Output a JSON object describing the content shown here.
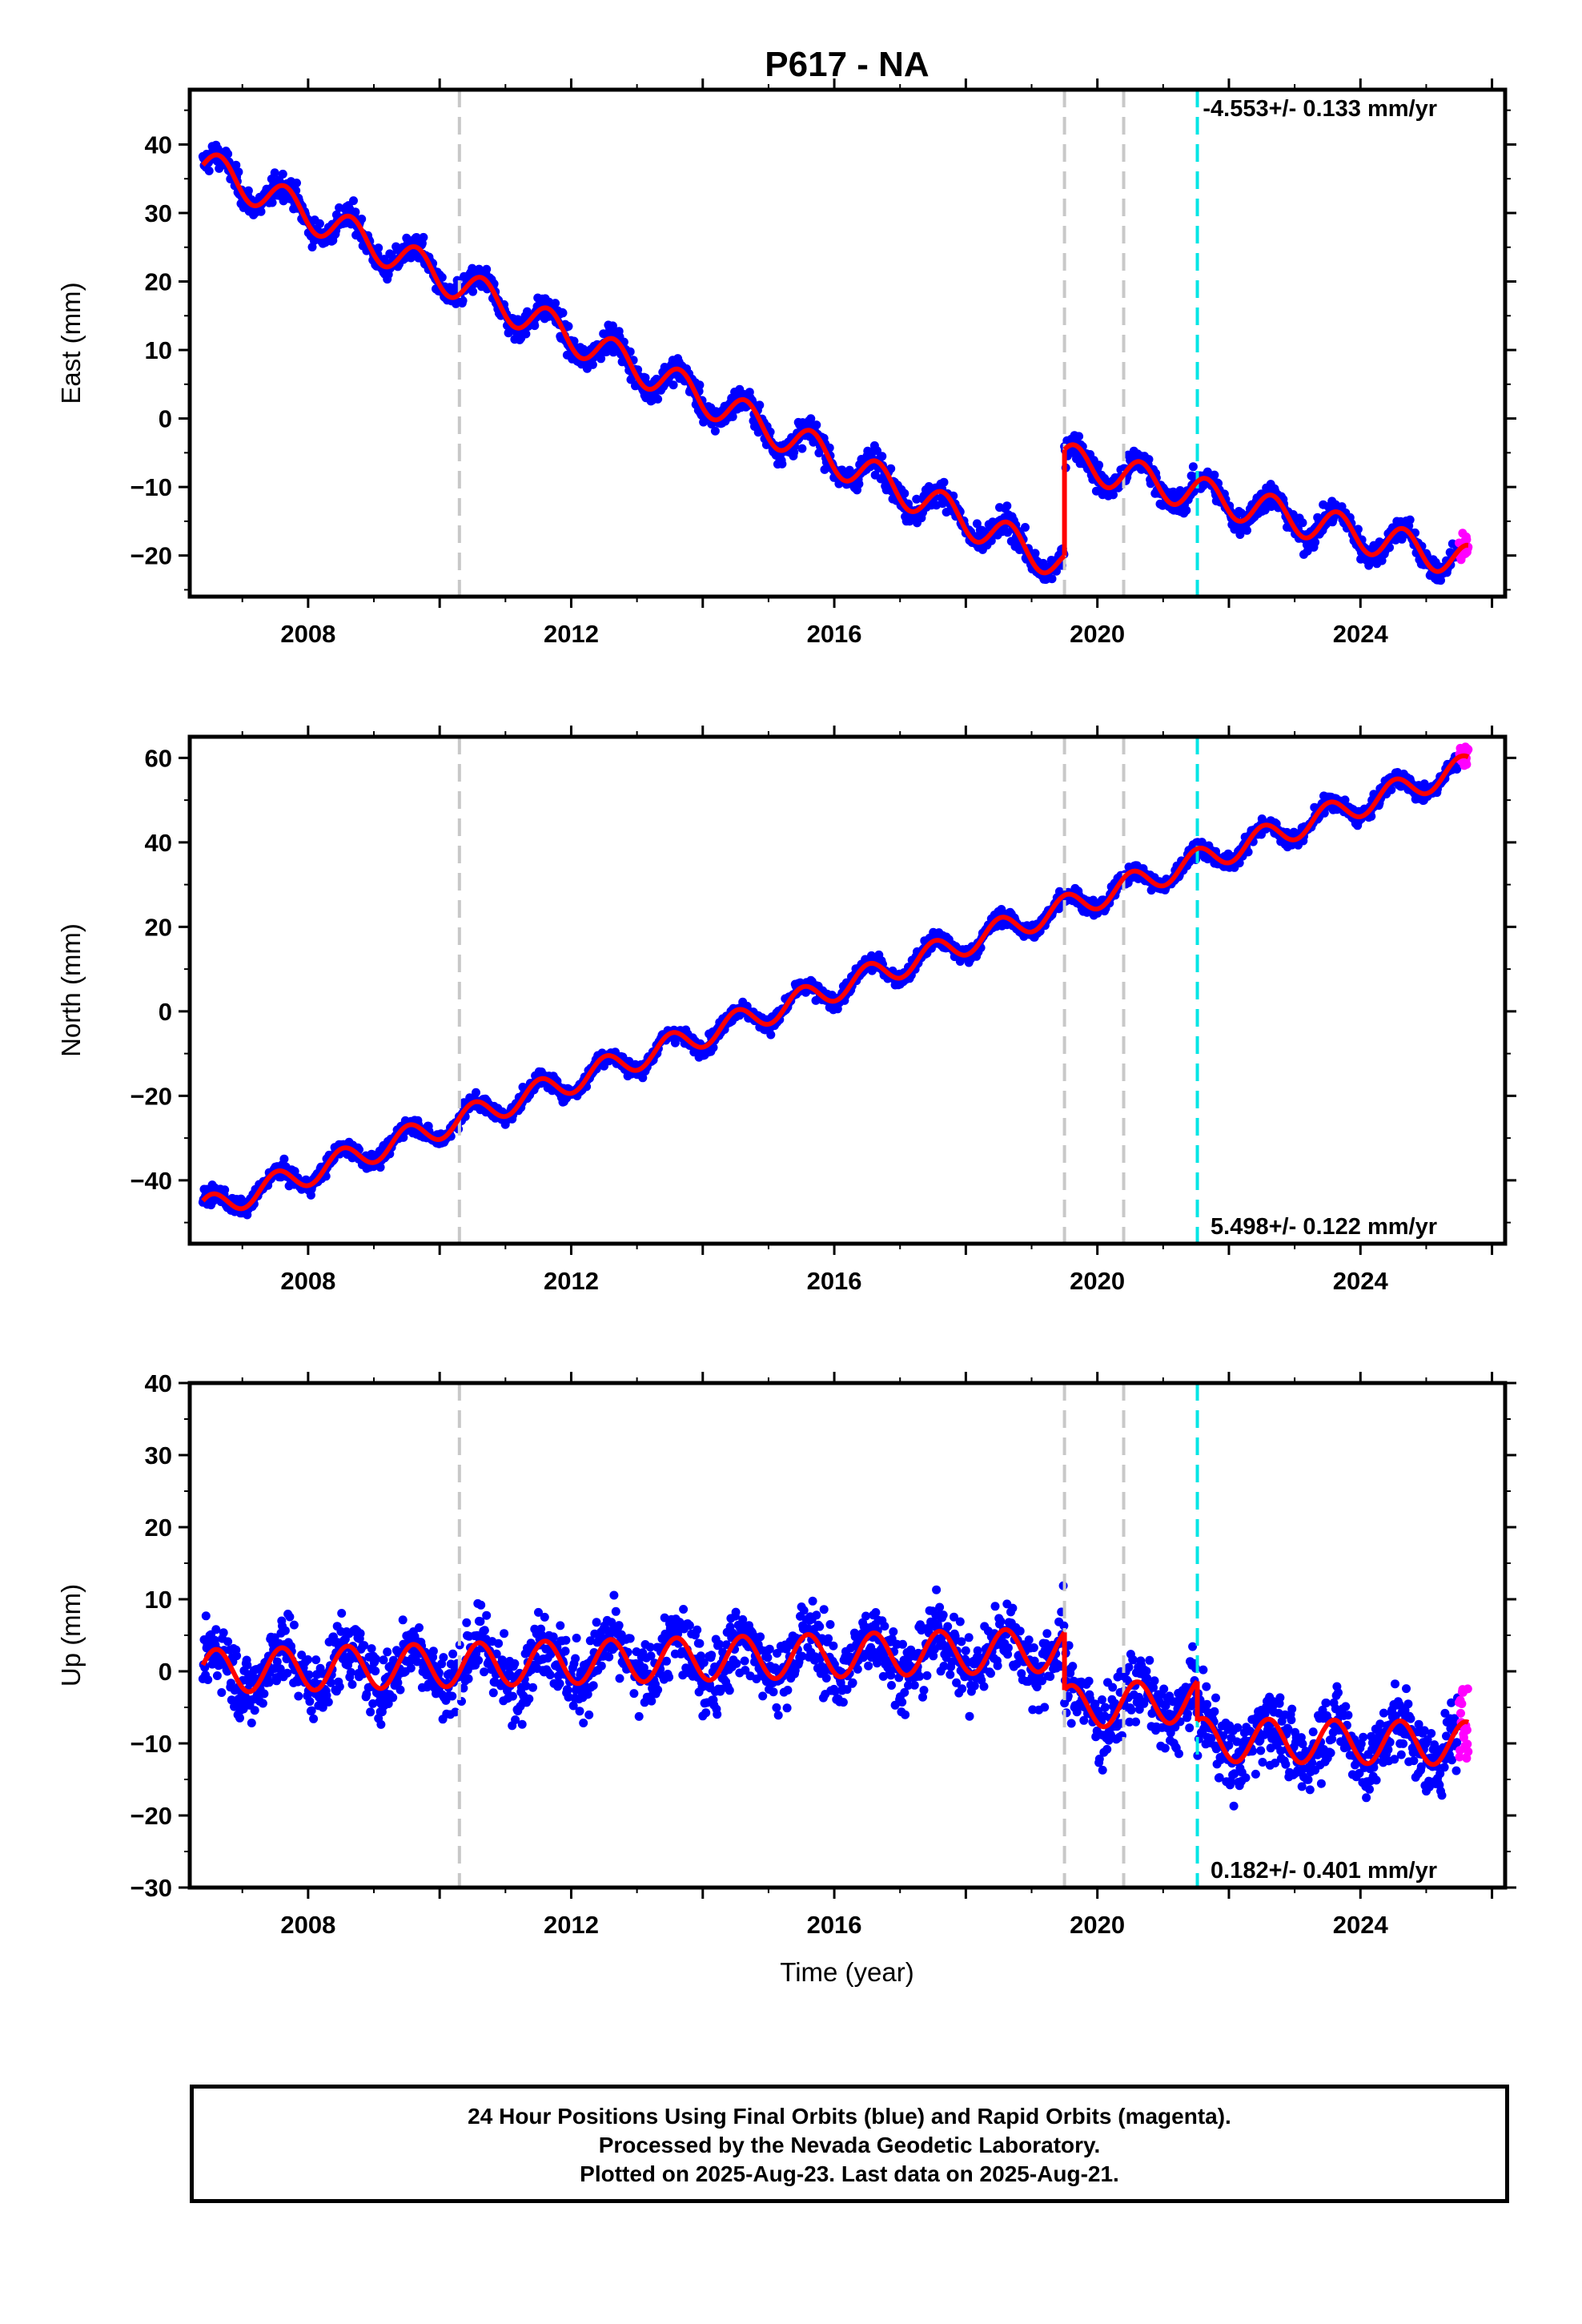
{
  "title": "P617 - NA",
  "xlabel": "Time (year)",
  "x_ticks": [
    "2008",
    "2012",
    "2016",
    "2020",
    "2024"
  ],
  "x_range": [
    2006.2,
    2026.2
  ],
  "colors": {
    "final_orbits": "#0000ff",
    "rapid_orbits": "#ff00ff",
    "model_fit": "#ff0000",
    "equipment_change": "#c8c8c8",
    "earthquake": "#00e5e5"
  },
  "footer": {
    "line1": "24 Hour Positions Using Final Orbits (blue) and Rapid Orbits (magenta).",
    "line2": "Processed by the Nevada Geodetic Laboratory.",
    "line3": "Plotted on 2025-Aug-23. Last data on 2025-Aug-21."
  },
  "chart_data": [
    {
      "type": "scatter",
      "panel": "east",
      "ylabel": "East (mm)",
      "ylim": [
        -26,
        48
      ],
      "y_ticks": [
        -20,
        -10,
        0,
        10,
        20,
        30,
        40
      ],
      "rate_label": "-4.553+/- 0.133 mm/yr",
      "rate_position": "top-right",
      "series": [
        {
          "role": "final_orbits",
          "x_start": 2006.4,
          "x_end": 2025.5
        },
        {
          "role": "rapid_orbits",
          "x_start": 2025.5,
          "x_end": 2025.64
        },
        {
          "role": "model_fit",
          "segments": [
            {
              "x_start": 2006.4,
              "x_end": 2019.5,
              "y_start": 37,
              "y_end": -21.5
            },
            {
              "x_start": 2019.5,
              "x_end": 2025.64,
              "y_start": -6,
              "y_end": -21
            }
          ],
          "annual_amplitude": 2.5,
          "annual_phase": 0.0
        }
      ],
      "vertical_lines": [
        {
          "x": 2010.3,
          "kind": "equipment_change"
        },
        {
          "x": 2019.5,
          "kind": "equipment_change"
        },
        {
          "x": 2020.4,
          "kind": "equipment_change"
        },
        {
          "x": 2021.52,
          "kind": "earthquake"
        }
      ]
    },
    {
      "type": "scatter",
      "panel": "north",
      "ylabel": "North (mm)",
      "ylim": [
        -55,
        65
      ],
      "y_ticks": [
        -40,
        -20,
        0,
        20,
        40,
        60
      ],
      "rate_label": "5.498+/- 0.122 mm/yr",
      "rate_position": "bottom-right",
      "series": [
        {
          "role": "final_orbits",
          "x_start": 2006.4,
          "x_end": 2025.5
        },
        {
          "role": "rapid_orbits",
          "x_start": 2025.5,
          "x_end": 2025.64
        },
        {
          "role": "model_fit",
          "segments": [
            {
              "x_start": 2006.4,
              "x_end": 2025.64,
              "y_start": -47,
              "y_end": 58
            }
          ],
          "annual_amplitude": 3.0,
          "annual_phase": 0.8
        }
      ],
      "vertical_lines": [
        {
          "x": 2010.3,
          "kind": "equipment_change"
        },
        {
          "x": 2019.5,
          "kind": "equipment_change"
        },
        {
          "x": 2020.4,
          "kind": "equipment_change"
        },
        {
          "x": 2021.52,
          "kind": "earthquake"
        }
      ]
    },
    {
      "type": "scatter",
      "panel": "up",
      "ylabel": "Up (mm)",
      "ylim": [
        -30,
        40
      ],
      "y_ticks": [
        -30,
        -20,
        -10,
        0,
        10,
        20,
        30,
        40
      ],
      "rate_label": "0.182+/- 0.401 mm/yr",
      "rate_position": "bottom-right",
      "series": [
        {
          "role": "final_orbits",
          "x_start": 2006.4,
          "x_end": 2025.5
        },
        {
          "role": "rapid_orbits",
          "x_start": 2025.5,
          "x_end": 2025.64
        },
        {
          "role": "model_fit",
          "segments": [
            {
              "x_start": 2006.4,
              "x_end": 2019.5,
              "y_start": 0,
              "y_end": 3
            },
            {
              "x_start": 2019.5,
              "x_end": 2021.52,
              "y_start": -5,
              "y_end": -4
            },
            {
              "x_start": 2021.52,
              "x_end": 2025.64,
              "y_start": -9.5,
              "y_end": -10
            }
          ],
          "annual_amplitude": 3.0,
          "annual_phase": 0.3
        }
      ],
      "vertical_lines": [
        {
          "x": 2010.3,
          "kind": "equipment_change"
        },
        {
          "x": 2019.5,
          "kind": "equipment_change"
        },
        {
          "x": 2020.4,
          "kind": "equipment_change"
        },
        {
          "x": 2021.52,
          "kind": "earthquake"
        }
      ]
    }
  ]
}
